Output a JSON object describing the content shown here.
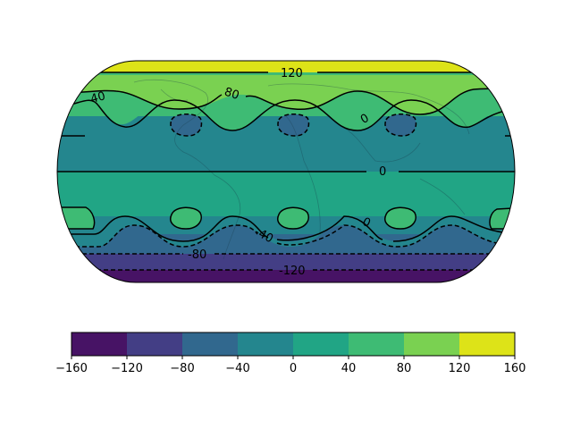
{
  "chart_data": {
    "type": "filled-contour",
    "projection": "Eckert IV (global)",
    "field_description": "zonally banded field with wave pattern in mid-latitudes",
    "levels": [
      -160,
      -120,
      -80,
      -40,
      0,
      40,
      80,
      120,
      160
    ],
    "level_colors": [
      "#471365",
      "#433e85",
      "#31688e",
      "#24868e",
      "#21a585",
      "#3ebb74",
      "#7ad151",
      "#dde318"
    ],
    "line_contours": [
      {
        "value": -120,
        "style": "dashed",
        "label": "-120"
      },
      {
        "value": -80,
        "style": "dashed",
        "label": "-80"
      },
      {
        "value": -40,
        "style": "dashed",
        "label": "-40"
      },
      {
        "value": 0,
        "style": "solid",
        "label": "0"
      },
      {
        "value": 40,
        "style": "solid",
        "label": "40"
      },
      {
        "value": 80,
        "style": "solid",
        "label": "80"
      },
      {
        "value": 120,
        "style": "solid",
        "label": "120"
      }
    ],
    "contour_labels": [
      "120",
      "80",
      "40",
      "0",
      "0",
      "0",
      "-40",
      "-80",
      "-120"
    ],
    "colorbar": {
      "orientation": "horizontal",
      "ticks": [
        "−160",
        "−120",
        "−80",
        "−40",
        "0",
        "40",
        "80",
        "120",
        "160"
      ]
    },
    "coastlines": true
  }
}
